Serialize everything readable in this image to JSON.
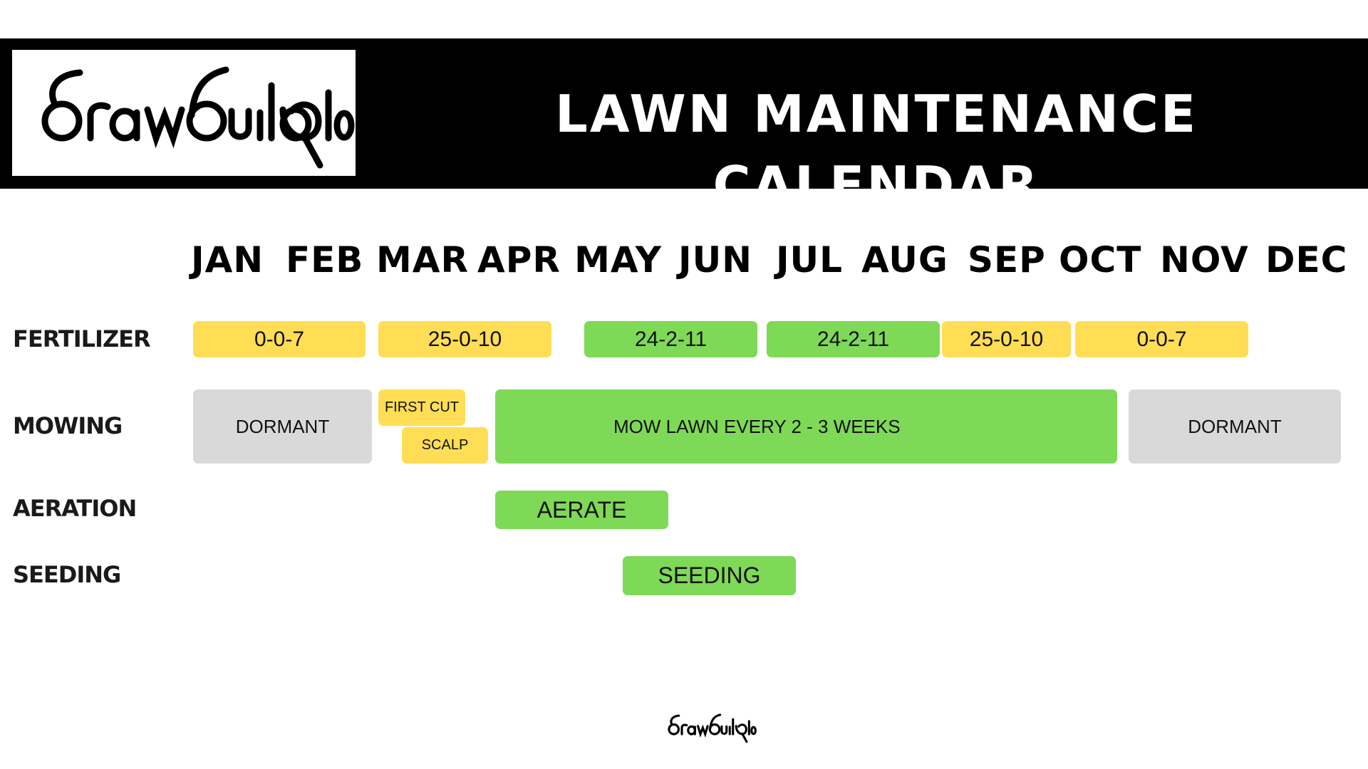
{
  "header": {
    "logo_text": "drawbuildplay",
    "title": "LAWN MAINTENANCE CALENDAR"
  },
  "months": [
    "JAN",
    "FEB",
    "MAR",
    "APR",
    "MAY",
    "JUN",
    "JUL",
    "AUG",
    "SEP",
    "OCT",
    "NOV",
    "DEC"
  ],
  "rows": {
    "fertilizer": {
      "label": "FERTILIZER",
      "bars": [
        {
          "text": "0-0-7",
          "color": "#ffdd55"
        },
        {
          "text": "25-0-10",
          "color": "#ffdd55"
        },
        {
          "text": "24-2-11",
          "color": "#7ed957"
        },
        {
          "text": "24-2-11",
          "color": "#7ed957"
        },
        {
          "text": "25-0-10",
          "color": "#ffdd55"
        },
        {
          "text": "0-0-7",
          "color": "#ffdd55"
        }
      ]
    },
    "mowing": {
      "label": "MOWING",
      "bars": [
        {
          "text": "DORMANT",
          "color": "#d9d9d9"
        },
        {
          "text": "FIRST CUT",
          "color": "#ffdd55"
        },
        {
          "text": "SCALP",
          "color": "#ffdd55"
        },
        {
          "text": "MOW LAWN  EVERY 2 - 3 WEEKS",
          "color": "#7ed957"
        },
        {
          "text": "DORMANT",
          "color": "#d9d9d9"
        }
      ]
    },
    "aeration": {
      "label": "AERATION",
      "bars": [
        {
          "text": "AERATE",
          "color": "#7ed957"
        }
      ]
    },
    "seeding": {
      "label": "SEEDING",
      "bars": [
        {
          "text": "SEEDING",
          "color": "#7ed957"
        }
      ]
    }
  },
  "footer": {
    "logo_text": "drawbuildplay"
  }
}
